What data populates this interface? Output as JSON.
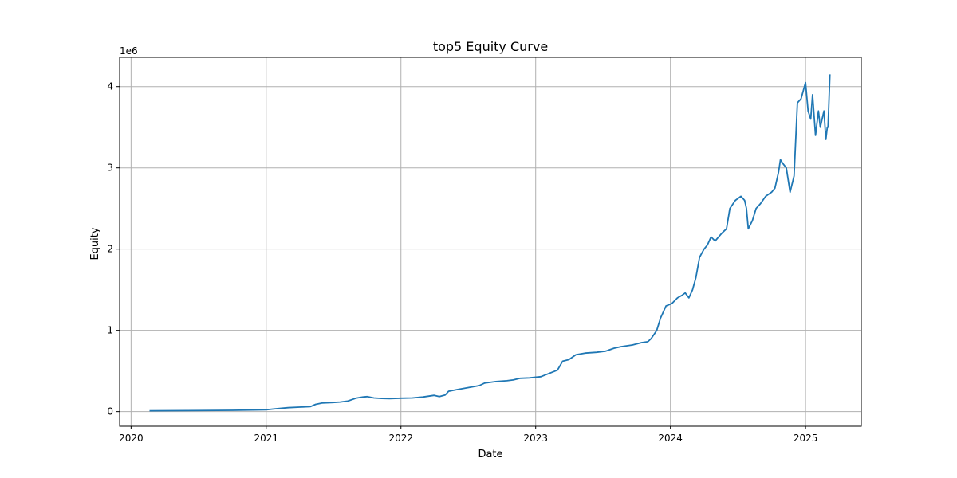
{
  "chart_data": {
    "type": "line",
    "title": "top5 Equity Curve",
    "xlabel": "Date",
    "ylabel": "Equity",
    "y_offset_label": "1e6",
    "grid": true,
    "legend": "none",
    "xlim": [
      "2019-12-01",
      "2025-06-01"
    ],
    "ylim": [
      -180000,
      4360000
    ],
    "x_ticks": [
      {
        "value": "2020-01-01",
        "label": "2020"
      },
      {
        "value": "2021-01-01",
        "label": "2021"
      },
      {
        "value": "2022-01-01",
        "label": "2022"
      },
      {
        "value": "2023-01-01",
        "label": "2023"
      },
      {
        "value": "2024-01-01",
        "label": "2024"
      },
      {
        "value": "2025-01-01",
        "label": "2025"
      }
    ],
    "y_ticks": [
      {
        "value": 0,
        "label": "0"
      },
      {
        "value": 1000000,
        "label": "1"
      },
      {
        "value": 2000000,
        "label": "2"
      },
      {
        "value": 3000000,
        "label": "3"
      },
      {
        "value": 4000000,
        "label": "4"
      }
    ],
    "colors": {
      "line": "#1f77b4",
      "grid": "#b0b0b0",
      "axes": "#000000"
    },
    "series": [
      {
        "x": [
          "2020-02-20",
          "2020-06-01",
          "2020-10-01",
          "2021-01-01",
          "2021-01-20",
          "2021-03-01",
          "2021-04-01",
          "2021-05-01",
          "2021-05-15",
          "2021-06-01",
          "2021-07-01",
          "2021-07-20",
          "2021-08-10",
          "2021-09-01",
          "2021-09-20",
          "2021-10-01",
          "2021-10-20",
          "2021-11-10",
          "2021-12-01",
          "2022-01-01",
          "2022-02-01",
          "2022-03-01",
          "2022-04-01",
          "2022-04-15",
          "2022-05-01",
          "2022-05-10",
          "2022-06-01",
          "2022-07-01",
          "2022-08-01",
          "2022-08-15",
          "2022-09-15",
          "2022-10-15",
          "2022-11-01",
          "2022-11-20",
          "2022-12-15",
          "2023-01-15",
          "2023-02-01",
          "2023-03-01",
          "2023-03-15",
          "2023-04-01",
          "2023-04-20",
          "2023-05-15",
          "2023-06-15",
          "2023-07-10",
          "2023-08-01",
          "2023-08-20",
          "2023-09-20",
          "2023-10-15",
          "2023-11-01",
          "2023-11-10",
          "2023-11-25",
          "2023-12-05",
          "2023-12-20",
          "2024-01-05",
          "2024-01-20",
          "2024-02-01",
          "2024-02-10",
          "2024-02-20",
          "2024-03-01",
          "2024-03-10",
          "2024-03-20",
          "2024-04-01",
          "2024-04-10",
          "2024-04-20",
          "2024-05-01",
          "2024-05-20",
          "2024-06-01",
          "2024-06-10",
          "2024-06-25",
          "2024-07-10",
          "2024-07-20",
          "2024-07-25",
          "2024-07-30",
          "2024-08-10",
          "2024-08-20",
          "2024-09-01",
          "2024-09-15",
          "2024-10-01",
          "2024-10-10",
          "2024-10-20",
          "2024-10-25",
          "2024-11-01",
          "2024-11-10",
          "2024-11-20",
          "2024-12-01",
          "2024-12-10",
          "2024-12-20",
          "2025-01-01",
          "2025-01-08",
          "2025-01-15",
          "2025-01-20",
          "2025-01-28",
          "2025-02-05",
          "2025-02-10",
          "2025-02-15",
          "2025-02-20",
          "2025-02-25",
          "2025-03-01",
          "2025-03-03",
          "2025-03-08"
        ],
        "y": [
          10000,
          12000,
          16000,
          22000,
          32000,
          48000,
          55000,
          62000,
          90000,
          105000,
          112000,
          118000,
          130000,
          165000,
          180000,
          185000,
          168000,
          162000,
          160000,
          165000,
          168000,
          180000,
          200000,
          185000,
          205000,
          250000,
          270000,
          295000,
          320000,
          350000,
          370000,
          380000,
          390000,
          410000,
          415000,
          430000,
          460000,
          510000,
          620000,
          640000,
          700000,
          720000,
          730000,
          745000,
          780000,
          800000,
          820000,
          850000,
          860000,
          900000,
          1000000,
          1150000,
          1300000,
          1330000,
          1400000,
          1430000,
          1460000,
          1400000,
          1500000,
          1650000,
          1900000,
          2000000,
          2050000,
          2150000,
          2100000,
          2200000,
          2250000,
          2500000,
          2600000,
          2650000,
          2600000,
          2500000,
          2250000,
          2350000,
          2500000,
          2560000,
          2650000,
          2700000,
          2750000,
          2950000,
          3100000,
          3050000,
          3000000,
          2700000,
          2900000,
          3800000,
          3850000,
          4050000,
          3700000,
          3600000,
          3900000,
          3400000,
          3700000,
          3500000,
          3600000,
          3700000,
          3350000,
          3500000,
          3500000,
          4150000
        ]
      }
    ]
  }
}
